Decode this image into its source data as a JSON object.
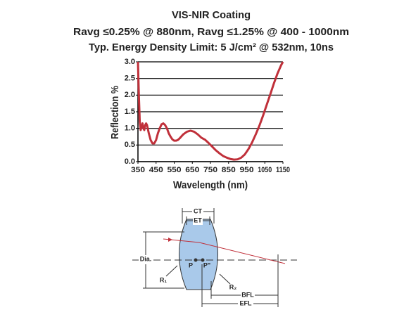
{
  "chart_data": {
    "type": "line",
    "title": "VIS-NIR Coating",
    "subtitle": [
      "Ravg ≤0.25% @ 880nm, Ravg ≤1.25% @ 400 - 1000nm",
      "Typ. Energy Density Limit: 5 J/cm² @ 532nm, 10ns"
    ],
    "xlabel": "Wavelength (nm)",
    "ylabel": "Reflection %",
    "x": [
      350,
      355,
      360,
      365,
      370,
      375,
      380,
      385,
      390,
      395,
      400,
      410,
      420,
      430,
      440,
      450,
      460,
      470,
      480,
      490,
      500,
      510,
      520,
      530,
      540,
      550,
      560,
      570,
      580,
      590,
      600,
      620,
      640,
      660,
      680,
      700,
      720,
      740,
      760,
      780,
      800,
      820,
      840,
      860,
      880,
      900,
      920,
      940,
      960,
      980,
      1000,
      1020,
      1040,
      1060,
      1080,
      1100,
      1120,
      1140,
      1150
    ],
    "values": [
      3.0,
      2.0,
      1.2,
      0.95,
      1.05,
      1.15,
      1.0,
      0.95,
      1.1,
      1.15,
      1.1,
      0.85,
      0.65,
      0.55,
      0.55,
      0.65,
      0.85,
      1.0,
      1.12,
      1.15,
      1.1,
      1.0,
      0.85,
      0.75,
      0.67,
      0.63,
      0.63,
      0.65,
      0.7,
      0.76,
      0.82,
      0.9,
      0.93,
      0.9,
      0.82,
      0.72,
      0.66,
      0.56,
      0.45,
      0.34,
      0.25,
      0.17,
      0.12,
      0.08,
      0.06,
      0.07,
      0.12,
      0.22,
      0.38,
      0.58,
      0.82,
      1.08,
      1.38,
      1.7,
      2.02,
      2.35,
      2.65,
      2.9,
      3.0
    ],
    "color": "#c0303a",
    "xlim": [
      350,
      1150
    ],
    "xticks": [
      350,
      450,
      550,
      650,
      750,
      850,
      950,
      1050,
      1150
    ],
    "ylim": [
      0,
      3
    ],
    "yticks": [
      {
        "value": 0,
        "label": "0.0"
      },
      0.5,
      {
        "value": 1,
        "label": "1.0"
      },
      1.5,
      {
        "value": 2,
        "label": "2.0"
      },
      2.5,
      {
        "value": 3,
        "label": "3.0"
      }
    ],
    "grid": true
  },
  "diagram": {
    "labels": {
      "ct": "CT",
      "et": "ET",
      "dia": "Dia.",
      "p": "P",
      "p2": "P\"",
      "r1": "R₁",
      "r2": "R₂",
      "bfl": "BFL",
      "efl": "EFL"
    }
  }
}
